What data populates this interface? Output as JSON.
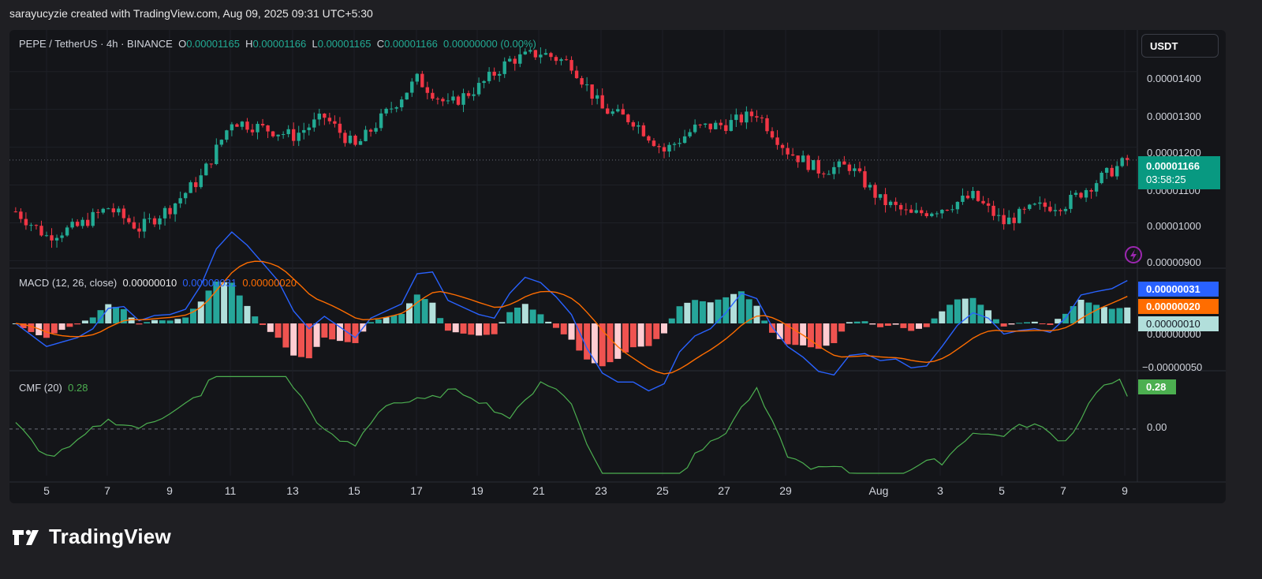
{
  "header": {
    "text": "sarayucyzie created with TradingView.com, Aug 09, 2025 09:31 UTC+5:30"
  },
  "legend": {
    "symbol": "PEPE / TetherUS · 4h · BINANCE",
    "o_label": "O",
    "o": "0.00001165",
    "h_label": "H",
    "h": "0.00001166",
    "l_label": "L",
    "l": "0.00001165",
    "c_label": "C",
    "c": "0.00001166",
    "change": "0.00000000 (0.00%)"
  },
  "currency_button": "USDT",
  "price_axis": [
    "0.00001400",
    "0.00001300",
    "0.00001200",
    "0.00001100",
    "0.00001000",
    "0.00000900"
  ],
  "last_price": {
    "value": "0.00001166",
    "countdown": "03:58:25"
  },
  "macd": {
    "label": "MACD (12, 26, close)",
    "hist": "0.00000010",
    "macd": "0.00000031",
    "signal": "0.00000020",
    "axis": [
      "0.00000000",
      "−0.00000050"
    ],
    "tags": {
      "macd": "0.00000031",
      "signal": "0.00000020",
      "hist": "0.00000010"
    }
  },
  "cmf": {
    "label": "CMF (20)",
    "value": "0.28",
    "zero_label": "0.00",
    "tag": "0.28"
  },
  "time_axis": [
    "5",
    "7",
    "9",
    "11",
    "13",
    "15",
    "17",
    "19",
    "21",
    "23",
    "25",
    "27",
    "29",
    "Aug",
    "3",
    "5",
    "7",
    "9"
  ],
  "brand": "TradingView",
  "colors": {
    "up": "#22ab94",
    "down": "#f23645",
    "macd": "#2962ff",
    "signal": "#ff6d00",
    "cmf": "#4caf50",
    "bg": "#141519"
  },
  "chart_data": {
    "type": "candlestick",
    "title": "PEPE / TetherUS · 4h · BINANCE",
    "price_range": [
      8.8e-06,
      1.51e-05
    ],
    "close_series_x_days": [
      4,
      5,
      6,
      7,
      8,
      9,
      10,
      11,
      12,
      13,
      14,
      15,
      16,
      17,
      18,
      19,
      20,
      21,
      22,
      23,
      24,
      25,
      26,
      27,
      28,
      29,
      30,
      31,
      32,
      33,
      34,
      35,
      36,
      37,
      38,
      39,
      40
    ],
    "close_series": [
      1.03e-05,
      9.65e-06,
      9.9e-06,
      1.04e-05,
      9.85e-06,
      1.04e-05,
      1.12e-05,
      1.27e-05,
      1.25e-05,
      1.23e-05,
      1.28e-05,
      1.2e-05,
      1.29e-05,
      1.38e-05,
      1.31e-05,
      1.36e-05,
      1.43e-05,
      1.45e-05,
      1.42e-05,
      1.3e-05,
      1.27e-05,
      1.19e-05,
      1.25e-05,
      1.26e-05,
      1.29e-05,
      1.19e-05,
      1.14e-05,
      1.15e-05,
      1.06e-05,
      1.02e-05,
      1.04e-05,
      1.07e-05,
      1e-05,
      1.04e-05,
      1.05e-05,
      1.11e-05,
      1.166e-05
    ],
    "macd_range": [
      -6e-07,
      7e-07
    ],
    "cmf_range": [
      -0.4,
      0.5
    ]
  }
}
